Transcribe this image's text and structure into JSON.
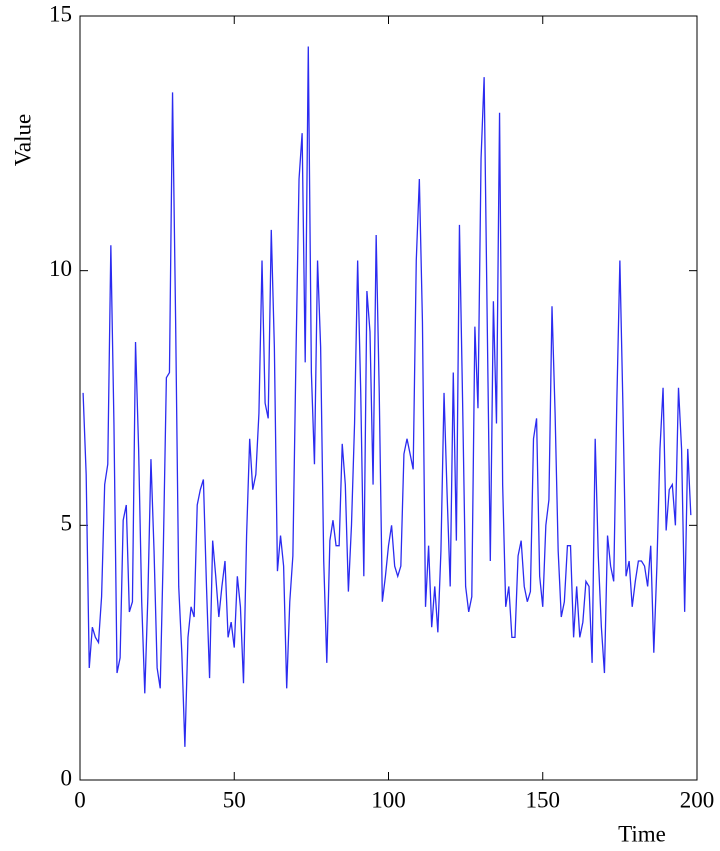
{
  "chart_data": {
    "type": "line",
    "xlabel": "Time",
    "ylabel": "Value",
    "x": [
      1,
      2,
      3,
      4,
      5,
      6,
      7,
      8,
      9,
      10,
      11,
      12,
      13,
      14,
      15,
      16,
      17,
      18,
      19,
      20,
      21,
      22,
      23,
      24,
      25,
      26,
      27,
      28,
      29,
      30,
      31,
      32,
      33,
      34,
      35,
      36,
      37,
      38,
      39,
      40,
      41,
      42,
      43,
      44,
      45,
      46,
      47,
      48,
      49,
      50,
      51,
      52,
      53,
      54,
      55,
      56,
      57,
      58,
      59,
      60,
      61,
      62,
      63,
      64,
      65,
      66,
      67,
      68,
      69,
      70,
      71,
      72,
      73,
      74,
      75,
      76,
      77,
      78,
      79,
      80,
      81,
      82,
      83,
      84,
      85,
      86,
      87,
      88,
      89,
      90,
      91,
      92,
      93,
      94,
      95,
      96,
      97,
      98,
      99,
      100,
      101,
      102,
      103,
      104,
      105,
      106,
      107,
      108,
      109,
      110,
      111,
      112,
      113,
      114,
      115,
      116,
      117,
      118,
      119,
      120,
      121,
      122,
      123,
      124,
      125,
      126,
      127,
      128,
      129,
      130,
      131,
      132,
      133,
      134,
      135,
      136,
      137,
      138,
      139,
      140,
      141,
      142,
      143,
      144,
      145,
      146,
      147,
      148,
      149,
      150,
      151,
      152,
      153,
      154,
      155,
      156,
      157,
      158,
      159,
      160,
      161,
      162,
      163,
      164,
      165,
      166,
      167,
      168,
      169,
      170,
      171,
      172,
      173,
      174,
      175,
      176,
      177,
      178,
      179,
      180,
      181,
      182,
      183,
      184,
      185,
      186,
      187,
      188,
      189,
      190,
      191,
      192,
      193,
      194,
      195,
      196,
      197,
      198
    ],
    "series": [
      {
        "color": "#2b2bf0",
        "values": [
          7.6,
          6.0,
          2.2,
          3.0,
          2.8,
          2.7,
          3.6,
          5.8,
          6.2,
          10.5,
          7.0,
          2.1,
          2.4,
          5.1,
          5.4,
          3.3,
          3.5,
          8.6,
          6.5,
          3.5,
          1.7,
          3.6,
          6.3,
          4.5,
          2.2,
          1.8,
          4.5,
          7.9,
          8.0,
          13.5,
          9.0,
          3.8,
          2.5,
          0.65,
          2.8,
          3.4,
          3.2,
          5.4,
          5.7,
          5.9,
          3.8,
          2.0,
          4.7,
          4.0,
          3.2,
          3.8,
          4.3,
          2.8,
          3.1,
          2.6,
          4.0,
          3.4,
          1.9,
          4.8,
          6.7,
          5.7,
          6.0,
          7.2,
          10.2,
          7.4,
          7.1,
          10.8,
          8.5,
          4.1,
          4.8,
          4.2,
          1.8,
          3.5,
          4.4,
          8.3,
          11.8,
          12.7,
          8.2,
          14.4,
          8.0,
          6.2,
          10.2,
          8.5,
          4.3,
          2.3,
          4.7,
          5.1,
          4.6,
          4.6,
          6.6,
          5.8,
          3.7,
          5.0,
          7.0,
          10.2,
          7.6,
          4.0,
          9.6,
          8.8,
          5.8,
          10.7,
          7.6,
          3.5,
          4.0,
          4.6,
          5.0,
          4.2,
          4.0,
          4.2,
          6.4,
          6.7,
          6.4,
          6.1,
          10.2,
          11.8,
          9.0,
          3.4,
          4.6,
          3.0,
          3.8,
          2.9,
          4.5,
          7.6,
          5.6,
          3.8,
          8.0,
          4.7,
          10.9,
          7.5,
          3.8,
          3.3,
          3.6,
          8.9,
          7.3,
          12.2,
          13.8,
          9.0,
          4.3,
          9.4,
          7.0,
          13.1,
          5.8,
          3.4,
          3.8,
          2.8,
          2.8,
          4.4,
          4.7,
          3.8,
          3.5,
          3.7,
          6.7,
          7.1,
          4.0,
          3.4,
          5.0,
          5.5,
          9.3,
          7.2,
          4.5,
          3.2,
          3.5,
          4.6,
          4.6,
          2.8,
          3.8,
          2.8,
          3.1,
          3.9,
          3.8,
          2.3,
          6.7,
          4.4,
          3.0,
          2.1,
          4.8,
          4.2,
          3.9,
          7.4,
          10.2,
          7.3,
          4.0,
          4.3,
          3.4,
          3.9,
          4.3,
          4.3,
          4.2,
          3.8,
          4.6,
          2.5,
          4.2,
          6.5,
          7.7,
          4.9,
          5.7,
          5.8,
          5.0,
          7.7,
          6.5,
          3.3,
          6.5,
          5.2
        ]
      }
    ],
    "xlim": [
      0,
      200
    ],
    "xticks": [
      0,
      50,
      100,
      150,
      200
    ],
    "ylim": [
      0,
      15
    ],
    "yticks": [
      0,
      5,
      10,
      15
    ],
    "grid": false
  }
}
